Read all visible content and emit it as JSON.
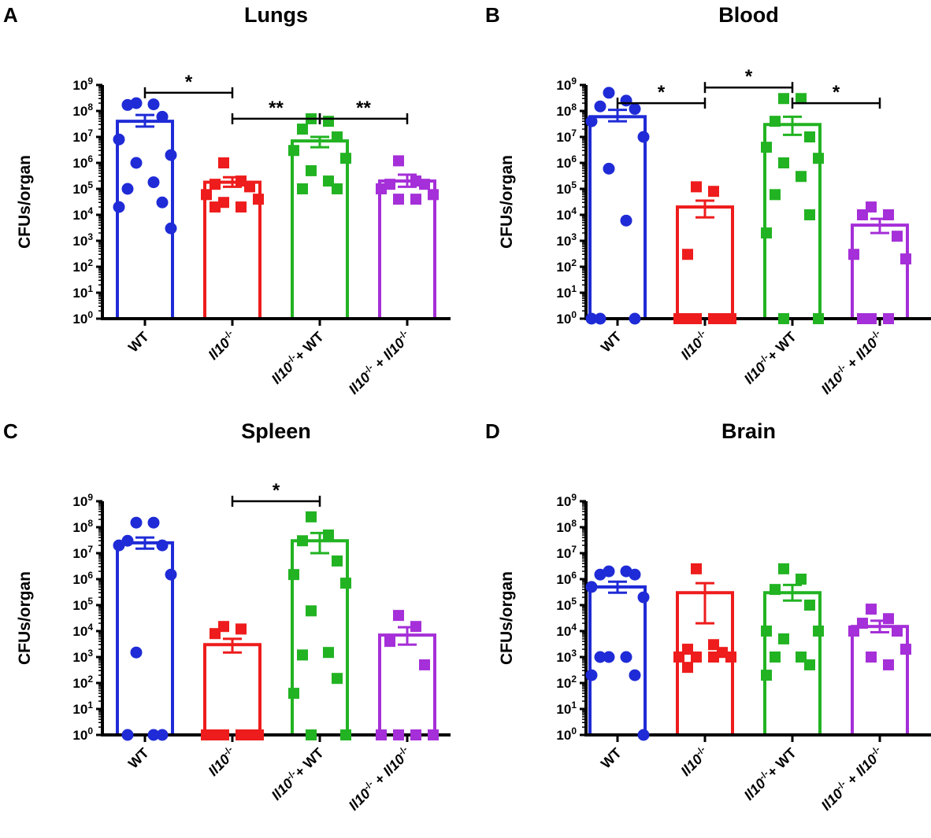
{
  "chart_data": [
    {
      "panel": "A",
      "title": "Lungs",
      "type": "bar",
      "ylabel": "CFUs/organ",
      "yscale": "log10",
      "ylim": [
        1,
        1000000000
      ],
      "ytick_labels": [
        "10^0",
        "10^1",
        "10^2",
        "10^3",
        "10^4",
        "10^5",
        "10^6",
        "10^7",
        "10^8",
        "10^9"
      ],
      "categories": [
        "WT",
        "Il10-/-",
        "Il10-/-+ WT",
        "Il10-/- + Il10-/-"
      ],
      "colors": [
        "#1f2bd6",
        "#ee1c1c",
        "#22b322",
        "#a52fd8"
      ],
      "markers": [
        "circle",
        "square",
        "square",
        "square"
      ],
      "means": [
        40000000,
        180000,
        7000000,
        200000
      ],
      "sem_upper": [
        70000000,
        280000,
        10000000,
        350000
      ],
      "sem_lower": [
        25000000,
        120000,
        4000000,
        120000
      ],
      "points": [
        [
          200000000,
          180000000,
          170000000,
          60000000,
          8000000,
          2000000,
          1000000,
          180000,
          100000,
          30000,
          20000,
          3000
        ],
        [
          1000000,
          200000,
          150000,
          120000,
          60000,
          40000,
          30000,
          20000,
          20000
        ],
        [
          50000000,
          40000000,
          20000000,
          10000000,
          3000000,
          1500000,
          500000,
          200000,
          100000,
          100000
        ],
        [
          1200000,
          200000,
          150000,
          150000,
          100000,
          60000,
          40000,
          40000
        ]
      ],
      "significance": [
        {
          "from": 0,
          "to": 1,
          "label": "*",
          "level": 500000000
        },
        {
          "from": 1,
          "to": 2,
          "label": "**",
          "level": 50000000
        },
        {
          "from": 2,
          "to": 3,
          "label": "**",
          "level": 50000000
        }
      ]
    },
    {
      "panel": "B",
      "title": "Blood",
      "type": "bar",
      "ylabel": "CFUs/organ",
      "yscale": "log10",
      "ylim": [
        1,
        1000000000
      ],
      "ytick_labels": [
        "10^0",
        "10^1",
        "10^2",
        "10^3",
        "10^4",
        "10^5",
        "10^6",
        "10^7",
        "10^8",
        "10^9"
      ],
      "categories": [
        "WT",
        "Il10-/-",
        "Il10-/-+ WT",
        "Il10-/- + Il10-/-"
      ],
      "colors": [
        "#1f2bd6",
        "#ee1c1c",
        "#22b322",
        "#a52fd8"
      ],
      "markers": [
        "circle",
        "square",
        "square",
        "square"
      ],
      "means": [
        60000000,
        20000,
        30000000,
        4000
      ],
      "sem_upper": [
        110000000,
        35000,
        60000000,
        7000
      ],
      "sem_lower": [
        40000000,
        8000,
        12000000,
        2000
      ],
      "points": [
        [
          500000000,
          250000000,
          150000000,
          120000000,
          40000000,
          10000000,
          600000,
          6000,
          1,
          1,
          1
        ],
        [
          120000,
          80000,
          300,
          1,
          1,
          1,
          1,
          1,
          1,
          1
        ],
        [
          300000000,
          300000000,
          40000000,
          10000000,
          4000000,
          1500000,
          1000000,
          300000,
          60000,
          10000,
          2000,
          1,
          1
        ],
        [
          20000,
          10000,
          10000,
          1500,
          300,
          200,
          1,
          1,
          1
        ]
      ],
      "significance": [
        {
          "from": 0,
          "to": 1,
          "label": "*",
          "level": 200000000
        },
        {
          "from": 1,
          "to": 2,
          "label": "*",
          "level": 800000000
        },
        {
          "from": 2,
          "to": 3,
          "label": "*",
          "level": 200000000
        }
      ]
    },
    {
      "panel": "C",
      "title": "Spleen",
      "type": "bar",
      "ylabel": "CFUs/organ",
      "yscale": "log10",
      "ylim": [
        1,
        1000000000
      ],
      "ytick_labels": [
        "10^0",
        "10^1",
        "10^2",
        "10^3",
        "10^4",
        "10^5",
        "10^6",
        "10^7",
        "10^8",
        "10^9"
      ],
      "categories": [
        "WT",
        "Il10-/-",
        "Il10-/-+ WT",
        "Il10-/- + Il10-/-"
      ],
      "colors": [
        "#1f2bd6",
        "#ee1c1c",
        "#22b322",
        "#a52fd8"
      ],
      "markers": [
        "circle",
        "square",
        "square",
        "square"
      ],
      "means": [
        25000000,
        3000,
        30000000,
        7000
      ],
      "sem_upper": [
        40000000,
        5000,
        60000000,
        14000
      ],
      "sem_lower": [
        15000000,
        1500,
        10000000,
        3000
      ],
      "points": [
        [
          150000000,
          150000000,
          30000000,
          20000000,
          20000000,
          1500000,
          1500,
          1,
          1,
          1
        ],
        [
          15000,
          12000,
          8000,
          1,
          1,
          1,
          1,
          1,
          1,
          1
        ],
        [
          250000000,
          50000000,
          30000000,
          5000000,
          1500000,
          700000,
          60000,
          1500,
          1200,
          150,
          40,
          1,
          1
        ],
        [
          40000,
          15000,
          4000,
          500,
          1,
          1,
          1,
          1
        ]
      ],
      "significance": [
        {
          "from": 1,
          "to": 2,
          "label": "*",
          "level": 1000000000
        }
      ]
    },
    {
      "panel": "D",
      "title": "Brain",
      "type": "bar",
      "ylabel": "CFUs/organ",
      "yscale": "log10",
      "ylim": [
        1,
        1000000000
      ],
      "ytick_labels": [
        "10^0",
        "10^1",
        "10^2",
        "10^3",
        "10^4",
        "10^5",
        "10^6",
        "10^7",
        "10^8",
        "10^9"
      ],
      "categories": [
        "WT",
        "Il10-/-",
        "Il10-/-+ WT",
        "Il10-/- + Il10-/-"
      ],
      "colors": [
        "#1f2bd6",
        "#ee1c1c",
        "#22b322",
        "#a52fd8"
      ],
      "markers": [
        "circle",
        "square",
        "square",
        "square"
      ],
      "means": [
        500000,
        300000,
        300000,
        15000
      ],
      "sem_upper": [
        800000,
        700000,
        600000,
        25000
      ],
      "sem_lower": [
        300000,
        20000,
        150000,
        9000
      ],
      "points": [
        [
          2000000,
          2000000,
          1500000,
          1500000,
          500000,
          200000,
          1000,
          1000,
          1000,
          200,
          200,
          1
        ],
        [
          2500000,
          3000,
          2000,
          1500,
          1000,
          1000,
          1000,
          1000,
          400
        ],
        [
          2500000,
          1000000,
          400000,
          100000,
          10000,
          10000,
          5000,
          1000,
          1000,
          500,
          200
        ],
        [
          70000,
          30000,
          20000,
          10000,
          10000,
          2000,
          1000,
          500
        ]
      ],
      "significance": []
    }
  ]
}
